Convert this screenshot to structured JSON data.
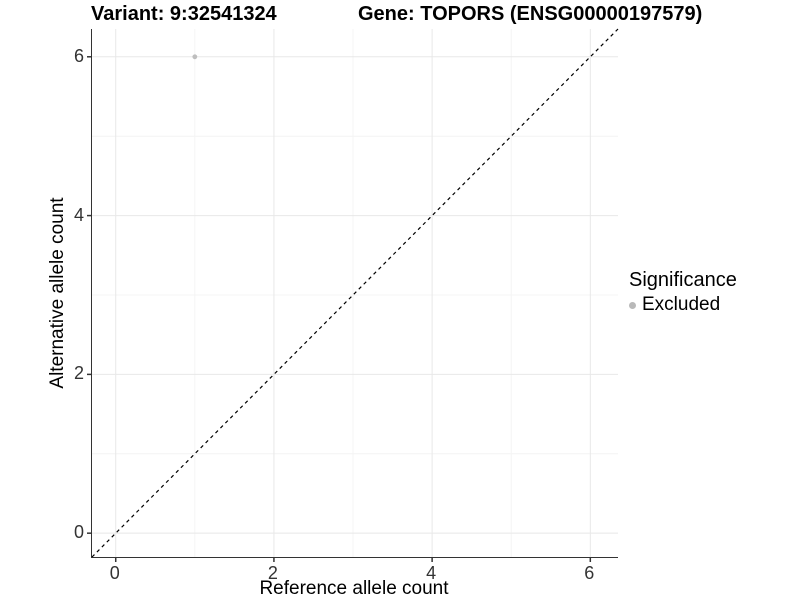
{
  "chart_data": {
    "type": "scatter",
    "title_left": "Variant: 9:32541324",
    "title_right": "Gene: TOPORS (ENSG00000197579)",
    "xlabel": "Reference allele count",
    "ylabel": "Alternative allele count",
    "xlim": [
      -0.3,
      6.35
    ],
    "ylim": [
      -0.3,
      6.35
    ],
    "x_ticks": [
      0,
      2,
      4,
      6
    ],
    "y_ticks": [
      0,
      2,
      4,
      6
    ],
    "minor_ticks": [
      1,
      3,
      5
    ],
    "grid": "major and minor, light grey on white",
    "series": [
      {
        "name": "Excluded",
        "points": [
          {
            "x": 1,
            "y": 6
          }
        ]
      }
    ],
    "reference_line": {
      "kind": "identity y=x",
      "style": "dashed",
      "color": "#000000"
    },
    "legend": {
      "title": "Significance",
      "position": "right",
      "items": [
        {
          "label": "Excluded",
          "color": "#b9b9b9",
          "marker": "circle"
        }
      ]
    },
    "colors": {
      "point": "#bebebe",
      "major_grid": "#e8e8e8",
      "minor_grid": "#f4f4f4",
      "axis_line": "#333333",
      "tick": "#333333",
      "tick_label": "#333333",
      "background": "#ffffff"
    }
  }
}
